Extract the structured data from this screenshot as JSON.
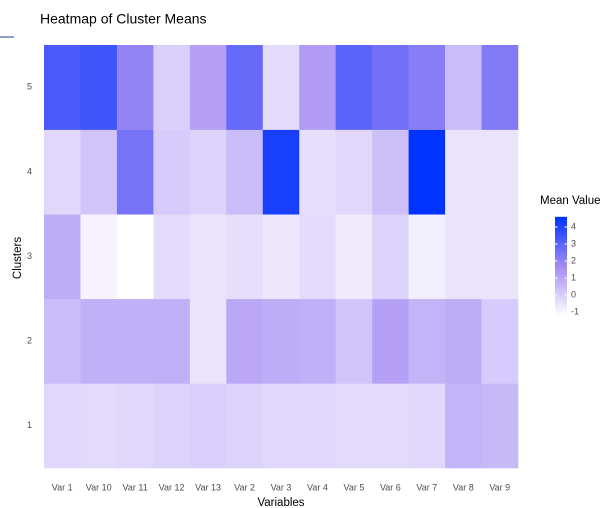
{
  "chart_data": {
    "type": "heatmap",
    "title": "Heatmap of Cluster Means",
    "x_label": "Variables",
    "y_label": "Clusters",
    "x": [
      "Var 1",
      "Var 10",
      "Var 11",
      "Var 12",
      "Var 13",
      "Var 2",
      "Var 3",
      "Var 4",
      "Var 5",
      "Var 6",
      "Var 7",
      "Var 8",
      "Var 9"
    ],
    "y": [
      "1",
      "2",
      "3",
      "4",
      "5"
    ],
    "values": [
      [
        -0.2,
        -0.3,
        -0.2,
        -0.1,
        0,
        -0.1,
        -0.2,
        -0.2,
        -0.3,
        -0.3,
        -0.2,
        0.7,
        0.6
      ],
      [
        0.5,
        0.8,
        0.8,
        0.8,
        -0.5,
        1.0,
        0.9,
        0.8,
        0.3,
        1.2,
        0.7,
        0.9,
        0.1
      ],
      [
        0.9,
        -0.9,
        -1.2,
        -0.3,
        -0.5,
        -0.4,
        -0.6,
        -0.3,
        -0.7,
        -0.1,
        -0.8,
        -0.5,
        -0.5
      ],
      [
        -0.2,
        0.3,
        2.5,
        0.1,
        -0.1,
        0.5,
        4.2,
        -0.4,
        -0.2,
        0.4,
        4.6,
        -0.5,
        -0.5
      ],
      [
        3.3,
        3.5,
        2.0,
        0,
        1.2,
        2.8,
        -0.3,
        1.3,
        3.0,
        2.6,
        2.2,
        0.5,
        2.3
      ]
    ],
    "legend_title": "Mean Value",
    "clim": [
      -1.2,
      4.6
    ],
    "cticks": [
      -1,
      0,
      1,
      2,
      3,
      4
    ],
    "colors": [
      "#ffffff",
      "#a48cf3",
      "#0033ff"
    ]
  }
}
